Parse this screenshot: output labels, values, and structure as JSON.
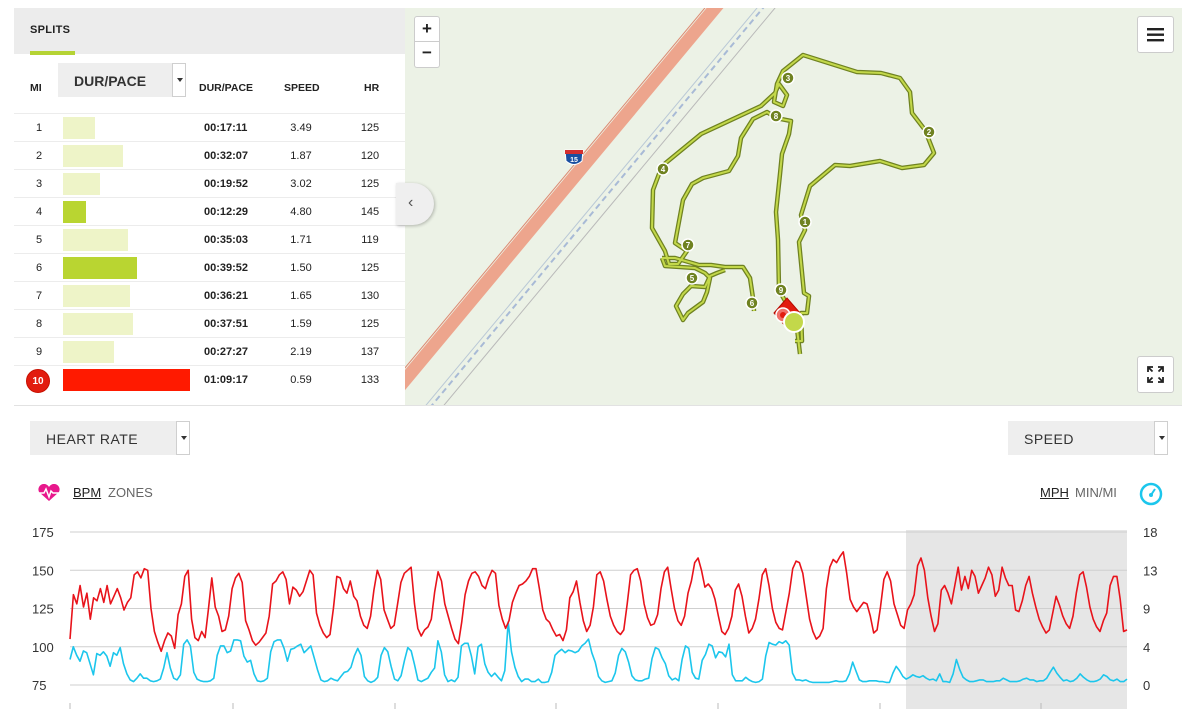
{
  "splits": {
    "tab_label": "SPLITS",
    "headers": {
      "mi": "MI",
      "metric_select": "DUR/PACE",
      "dur": "DUR/PACE",
      "speed": "SPEED",
      "hr": "HR"
    },
    "rows": [
      {
        "mi": "1",
        "dur": "00:17:11",
        "speed": "3.49",
        "hr": "125",
        "bar": 0.25,
        "color": "#eef4c8"
      },
      {
        "mi": "2",
        "dur": "00:32:07",
        "speed": "1.87",
        "hr": "120",
        "bar": 0.47,
        "color": "#eef4c8"
      },
      {
        "mi": "3",
        "dur": "00:19:52",
        "speed": "3.02",
        "hr": "125",
        "bar": 0.29,
        "color": "#eef4c8"
      },
      {
        "mi": "4",
        "dur": "00:12:29",
        "speed": "4.80",
        "hr": "145",
        "bar": 0.18,
        "color": "#b9d531"
      },
      {
        "mi": "5",
        "dur": "00:35:03",
        "speed": "1.71",
        "hr": "119",
        "bar": 0.51,
        "color": "#eef4c8"
      },
      {
        "mi": "6",
        "dur": "00:39:52",
        "speed": "1.50",
        "hr": "125",
        "bar": 0.58,
        "color": "#b9d531"
      },
      {
        "mi": "7",
        "dur": "00:36:21",
        "speed": "1.65",
        "hr": "130",
        "bar": 0.53,
        "color": "#eef4c8"
      },
      {
        "mi": "8",
        "dur": "00:37:51",
        "speed": "1.59",
        "hr": "125",
        "bar": 0.55,
        "color": "#eef4c8"
      },
      {
        "mi": "9",
        "dur": "00:27:27",
        "speed": "2.19",
        "hr": "137",
        "bar": 0.4,
        "color": "#eef4c8"
      },
      {
        "mi": "10",
        "dur": "01:09:17",
        "speed": "0.59",
        "hr": "133",
        "bar": 1.0,
        "color": "#ff1a00",
        "selected": true
      }
    ]
  },
  "map": {
    "zoom_in": "+",
    "zoom_out": "−",
    "highway_shield": "15",
    "route_color": "#a3ba2e",
    "mile_markers": [
      "1",
      "2",
      "3",
      "4",
      "5",
      "6",
      "7",
      "8",
      "9"
    ]
  },
  "controls": {
    "left_select": "HEART RATE",
    "right_select": "SPEED",
    "left_units": {
      "selected": "BPM",
      "other": "ZONES"
    },
    "right_units": {
      "selected": "MPH",
      "other": "MIN/MI"
    }
  },
  "icons": {
    "heart": "heart-rate-icon",
    "gauge": "speed-gauge-icon",
    "menu": "menu-icon",
    "fullscreen": "fullscreen-icon",
    "collapse": "chevron-left-icon"
  },
  "colors": {
    "hr": "#e8131b",
    "speed": "#1cc6ec",
    "accent": "#b5d334",
    "selected_split": "#ff1a00"
  },
  "chart_data": {
    "type": "line",
    "y_left": {
      "ticks": [
        "175",
        "150",
        "125",
        "100",
        "75"
      ],
      "range": [
        75,
        175
      ],
      "label": ""
    },
    "y_right": {
      "ticks": [
        "18",
        "13",
        "9",
        "4",
        "0"
      ],
      "range": [
        0,
        18
      ],
      "label": ""
    },
    "highlight": "last split (mile 10)",
    "series": [
      {
        "axis": "left",
        "color": "#e8131b",
        "values": [
          105,
          134,
          128,
          140,
          126,
          135,
          118,
          132,
          130,
          138,
          129,
          140,
          128,
          133,
          138,
          132,
          124,
          129,
          132,
          147,
          149,
          145,
          151,
          150,
          125,
          110,
          103,
          97,
          104,
          109,
          107,
          99,
          121,
          128,
          146,
          150,
          118,
          106,
          104,
          110,
          106,
          125,
          145,
          126,
          120,
          110,
          111,
          120,
          138,
          145,
          148,
          142,
          117,
          111,
          104,
          101,
          103,
          106,
          109,
          120,
          141,
          143,
          147,
          149,
          144,
          128,
          139,
          137,
          133,
          136,
          143,
          150,
          147,
          122,
          114,
          109,
          106,
          108,
          125,
          146,
          145,
          138,
          135,
          143,
          133,
          130,
          120,
          114,
          112,
          120,
          137,
          150,
          144,
          124,
          118,
          112,
          114,
          128,
          142,
          148,
          150,
          152,
          128,
          112,
          107,
          111,
          113,
          118,
          136,
          149,
          143,
          128,
          120,
          112,
          105,
          102,
          116,
          134,
          143,
          148,
          149,
          146,
          140,
          138,
          145,
          150,
          148,
          127,
          118,
          112,
          117,
          129,
          135,
          140,
          141,
          143,
          146,
          151,
          151,
          138,
          124,
          118,
          116,
          111,
          107,
          108,
          104,
          111,
          132,
          136,
          143,
          129,
          117,
          110,
          114,
          126,
          147,
          149,
          143,
          131,
          120,
          114,
          110,
          108,
          111,
          128,
          147,
          150,
          151,
          143,
          128,
          119,
          114,
          115,
          121,
          138,
          149,
          152,
          138,
          125,
          117,
          114,
          120,
          135,
          143,
          155,
          158,
          150,
          139,
          141,
          138,
          131,
          120,
          110,
          108,
          112,
          120,
          137,
          141,
          133,
          120,
          109,
          112,
          118,
          131,
          147,
          151,
          140,
          125,
          116,
          112,
          111,
          123,
          135,
          151,
          156,
          155,
          148,
          133,
          118,
          110,
          105,
          107,
          112,
          138,
          152,
          157,
          155,
          159,
          162,
          148,
          131,
          126,
          123,
          126,
          129,
          128,
          120,
          109,
          111,
          126,
          144,
          149,
          143,
          128,
          121,
          114,
          112,
          124,
          128,
          134,
          153,
          158,
          150,
          132,
          120,
          110,
          115,
          137,
          140,
          135,
          128,
          140,
          152,
          137,
          146,
          138,
          150,
          146,
          135,
          140,
          145,
          152,
          147,
          133,
          137,
          152,
          145,
          140,
          140,
          124,
          123,
          130,
          140,
          146,
          135,
          126,
          118,
          113,
          109,
          111,
          122,
          133,
          127,
          120,
          115,
          112,
          120,
          135,
          147,
          149,
          139,
          126,
          118,
          113,
          110,
          117,
          122,
          140,
          146,
          146,
          131,
          110,
          111
        ],
        "note": "Heart rate in BPM, left axis"
      },
      {
        "axis": "right",
        "color": "#1cc6ec",
        "values": [
          3,
          4.5,
          3.5,
          2.8,
          4,
          3.8,
          2.5,
          1.2,
          3.7,
          3.5,
          3.9,
          3.4,
          2.2,
          3.8,
          3.5,
          4.4,
          2.5,
          1.3,
          0.6,
          0.4,
          0.8,
          1.3,
          0.8,
          0.8,
          0.5,
          0.4,
          0.5,
          0.7,
          2.0,
          3.8,
          2.0,
          0.8,
          0.6,
          1.2,
          4.8,
          5.3,
          4.6,
          1.5,
          0.7,
          0.5,
          0.4,
          0.4,
          0.5,
          0.8,
          3.5,
          4.6,
          4.6,
          3.8,
          4.0,
          5.3,
          5.3,
          5.2,
          3.4,
          2.7,
          2.9,
          1.3,
          0.5,
          0.4,
          0.5,
          0.8,
          3.9,
          5.1,
          5.3,
          5.3,
          4.3,
          2.8,
          4.2,
          4.3,
          4.6,
          4.8,
          3.8,
          4.2,
          4.6,
          3.2,
          1.8,
          0.6,
          0.4,
          0.5,
          0.8,
          0.6,
          0.5,
          1.0,
          1.5,
          1.6,
          2.1,
          3.4,
          4.3,
          3.5,
          1.0,
          0.5,
          0.3,
          0.5,
          0.9,
          3.5,
          4.4,
          3.9,
          2.2,
          0.7,
          0.5,
          1.1,
          2.9,
          4.4,
          4.0,
          2.4,
          0.6,
          0.4,
          0.6,
          0.8,
          1.5,
          2.0,
          5.2,
          3.9,
          1.2,
          0.4,
          0.6,
          0.4,
          0.9,
          4.6,
          4.9,
          4.9,
          3.4,
          1.3,
          4.5,
          4.8,
          2.5,
          1.5,
          1.0,
          1.4,
          0.9,
          0.5,
          1.7,
          7.4,
          3.9,
          2.1,
          1.0,
          0.4,
          0.7,
          0.7,
          0.4,
          0.4,
          0.7,
          0.3,
          0.3,
          0.4,
          1.5,
          3.5,
          3.9,
          4.2,
          3.8,
          4.1,
          4.0,
          3.8,
          4.0,
          4.6,
          4.9,
          5.4,
          3.8,
          2.7,
          1.0,
          0.5,
          0.3,
          0.4,
          0.5,
          1.4,
          3.5,
          4.3,
          3.9,
          2.7,
          1.1,
          0.6,
          0.5,
          0.5,
          0.7,
          0.8,
          3.1,
          4.4,
          4.2,
          3.2,
          2.5,
          1.1,
          0.6,
          0.8,
          0.5,
          3.0,
          4.6,
          4.3,
          1.5,
          0.8,
          0.7,
          2.9,
          3.6,
          4.8,
          4.6,
          3.2,
          3.9,
          3.8,
          3.3,
          4.8,
          1.2,
          0.5,
          0.5,
          0.5,
          0.9,
          0.6,
          0.4,
          0.3,
          0.4,
          0.7,
          3.4,
          5.0,
          4.8,
          4.7,
          5.1,
          4.9,
          5.2,
          4.7,
          1.4,
          0.6,
          0.6,
          0.5,
          0.6,
          0.4,
          0.3,
          0.3,
          0.3,
          0.3,
          0.3,
          0.3,
          0.4,
          0.5,
          0.4,
          0.4,
          0.5,
          1.3,
          2.7,
          1.6,
          0.6,
          0.4,
          0.4,
          0.5,
          0.5,
          0.5,
          0.4,
          0.4,
          0.3,
          0.3,
          1.4,
          2.2,
          1.7,
          1.0,
          0.7,
          0.9,
          1.2,
          1.0,
          0.9,
          1.1,
          0.8,
          0.6,
          0.7,
          0.5,
          1.3,
          0.4,
          0.4,
          0.3,
          1.3,
          3.0,
          1.8,
          0.9,
          0.6,
          0.4,
          0.4,
          0.5,
          0.6,
          0.6,
          0.4,
          0.4,
          0.4,
          0.5,
          0.5,
          0.8,
          0.6,
          0.4,
          0.4,
          0.4,
          0.5,
          0.7,
          0.8,
          0.6,
          0.6,
          0.4,
          0.5,
          0.5,
          0.8,
          1.5,
          2.1,
          1.4,
          0.9,
          0.5,
          0.6,
          0.4,
          0.5,
          0.8,
          1.3,
          0.9,
          0.6,
          0.4,
          0.4,
          0.5,
          0.7,
          1.2,
          1.0,
          0.6,
          0.5,
          0.7,
          0.4,
          0.4,
          0.7
        ],
        "note": "Speed in MPH, right axis"
      }
    ]
  }
}
